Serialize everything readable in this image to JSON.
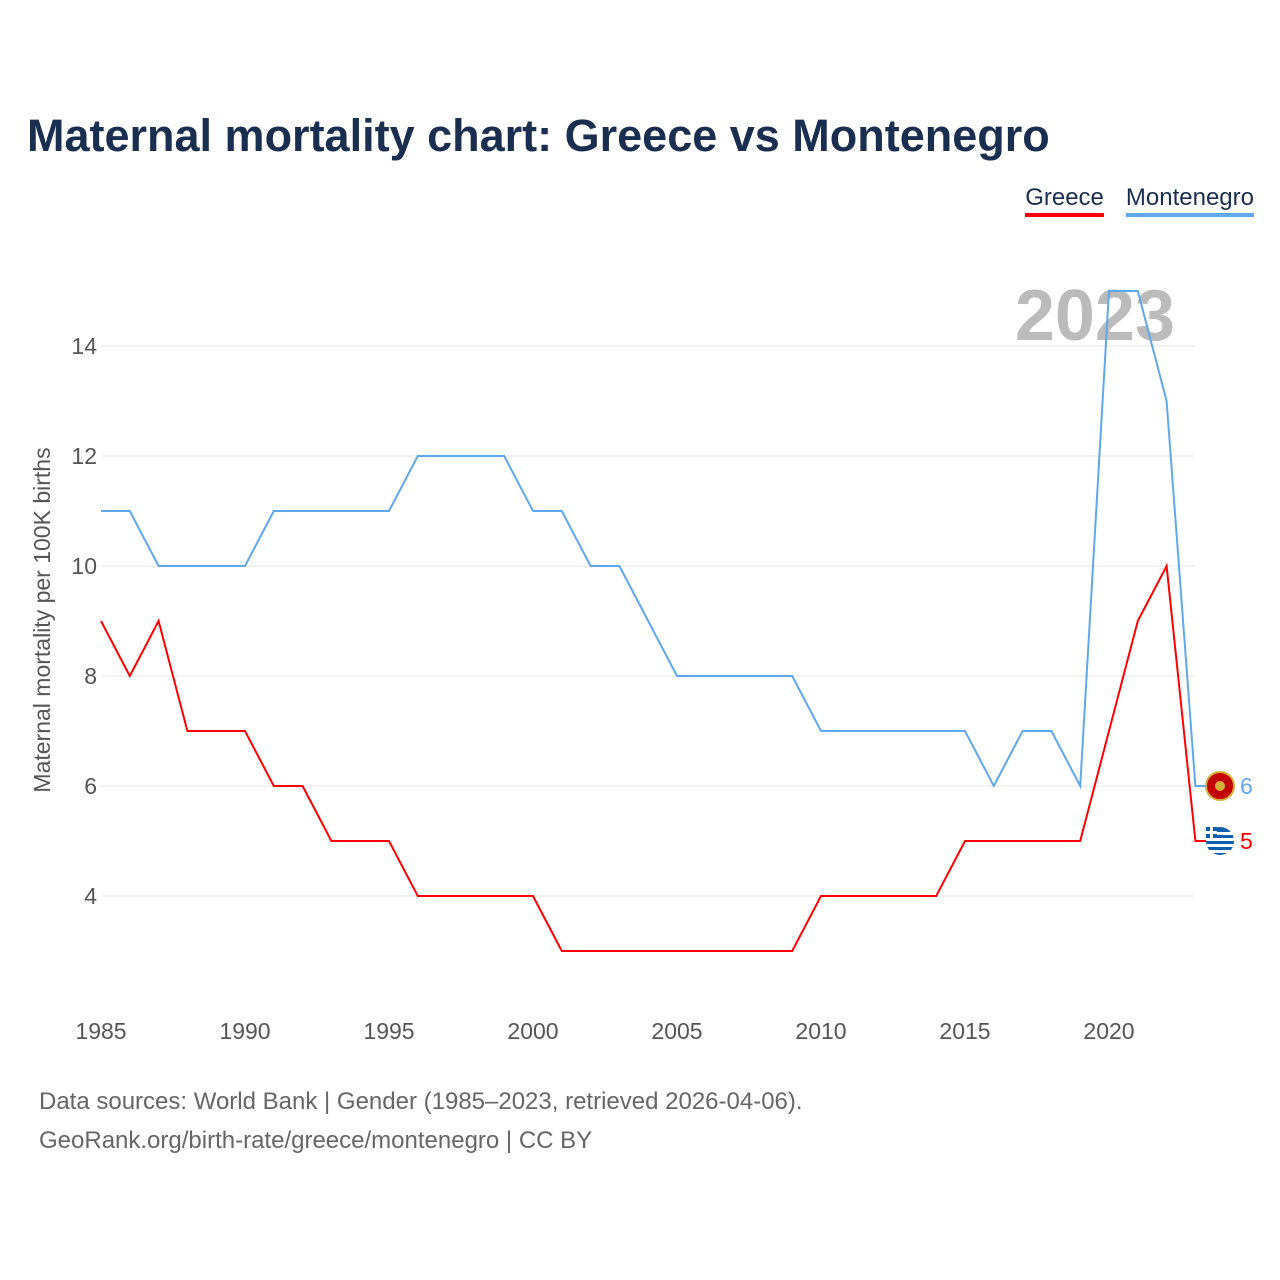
{
  "title": "Maternal mortality chart: Greece vs Montenegro",
  "legend": [
    "Greece",
    "Montenegro"
  ],
  "year_label": "2023",
  "source_line1": "Data sources: World Bank | Gender (1985–2023, retrieved 2026-04-06).",
  "source_line2": "GeoRank.org/birth-rate/greece/montenegro | CC BY",
  "chart_data": {
    "type": "line",
    "title": "Maternal mortality chart: Greece vs Montenegro",
    "xlabel": "",
    "ylabel": "Maternal mortality per 100K births",
    "xlim": [
      1985,
      2023
    ],
    "ylim": [
      2,
      15.5
    ],
    "xticks": [
      1985,
      1990,
      1995,
      2000,
      2005,
      2010,
      2015,
      2020
    ],
    "yticks": [
      4,
      6,
      8,
      10,
      12,
      14
    ],
    "x": [
      1985,
      1986,
      1987,
      1988,
      1989,
      1990,
      1991,
      1992,
      1993,
      1994,
      1995,
      1996,
      1997,
      1998,
      1999,
      2000,
      2001,
      2002,
      2003,
      2004,
      2005,
      2006,
      2007,
      2008,
      2009,
      2010,
      2011,
      2012,
      2013,
      2014,
      2015,
      2016,
      2017,
      2018,
      2019,
      2020,
      2021,
      2022,
      2023
    ],
    "series": [
      {
        "name": "Greece",
        "color": "#ff0000",
        "end_label": "5",
        "values": [
          9,
          8,
          9,
          7,
          7,
          7,
          6,
          6,
          5,
          5,
          5,
          4,
          4,
          4,
          4,
          4,
          3,
          3,
          3,
          3,
          3,
          3,
          3,
          3,
          3,
          4,
          4,
          4,
          4,
          4,
          5,
          5,
          5,
          5,
          5,
          7,
          9,
          10,
          5
        ]
      },
      {
        "name": "Montenegro",
        "color": "#5fa8ec",
        "end_label": "6",
        "values": [
          11,
          11,
          10,
          10,
          10,
          10,
          11,
          11,
          11,
          11,
          11,
          12,
          12,
          12,
          12,
          11,
          11,
          10,
          10,
          9,
          8,
          8,
          8,
          8,
          8,
          7,
          7,
          7,
          7,
          7,
          7,
          6,
          7,
          7,
          6,
          15,
          15,
          13,
          6
        ]
      }
    ],
    "grid": true,
    "legend_position": "top-right"
  }
}
